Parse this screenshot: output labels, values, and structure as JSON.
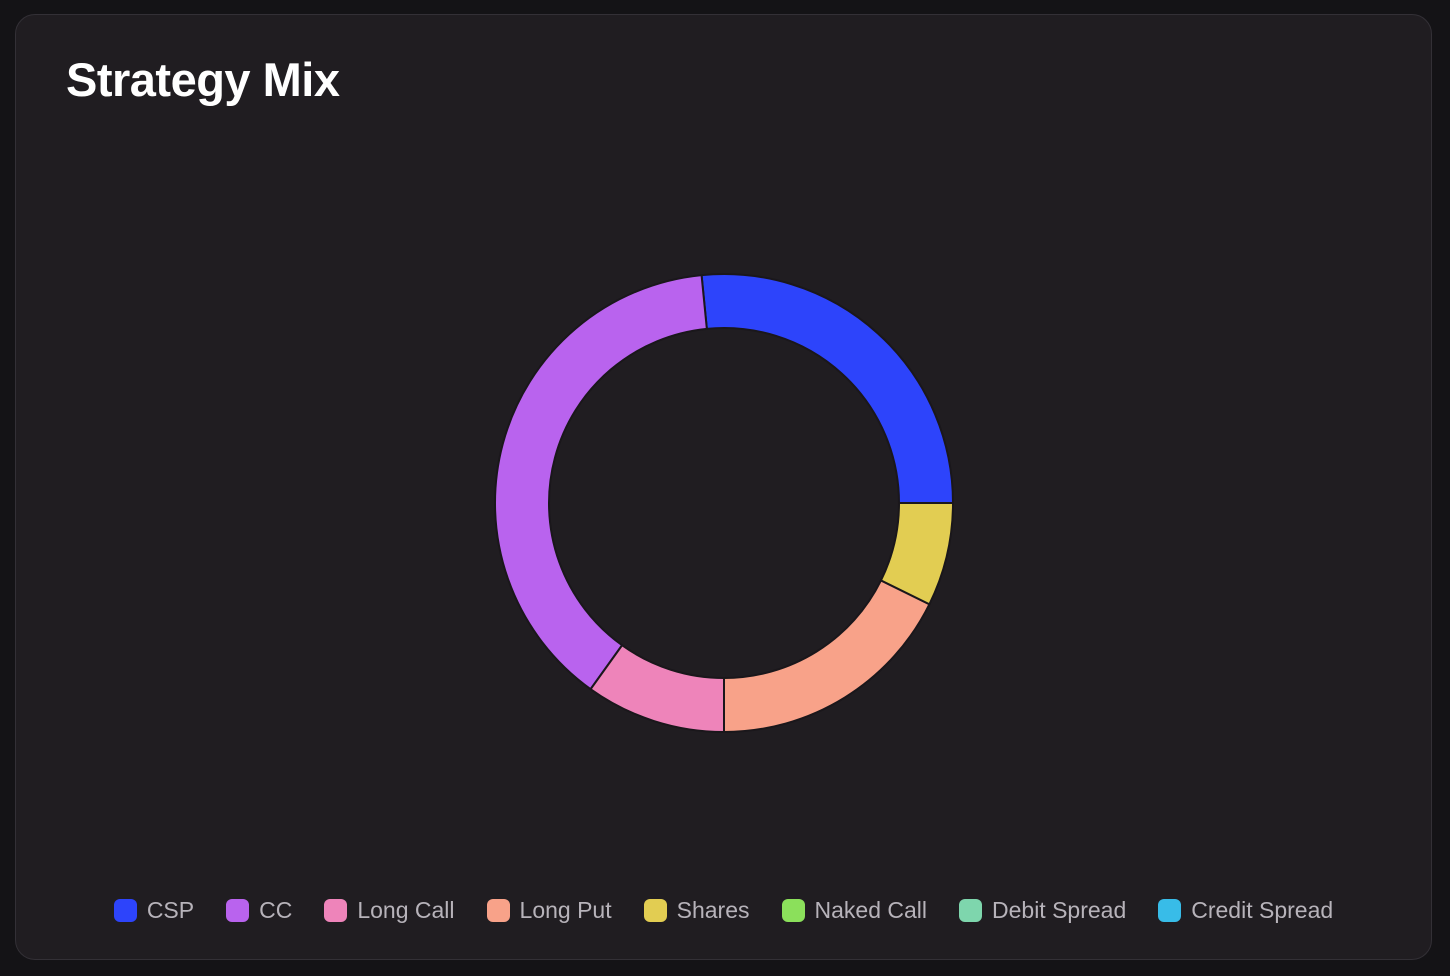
{
  "card": {
    "title": "Strategy Mix"
  },
  "chart_data": {
    "type": "pie",
    "variant": "donut",
    "title": "Strategy Mix",
    "categories": [
      "CSP",
      "CC",
      "Long Call",
      "Long Put",
      "Shares",
      "Naked Call",
      "Debit Spread",
      "Credit Spread"
    ],
    "values": [
      25.5,
      37.0,
      9.5,
      17.0,
      7.0,
      0,
      0,
      0
    ],
    "unit": "%",
    "colors": [
      "#2d44fb",
      "#b963ee",
      "#ee84ba",
      "#f8a289",
      "#e2cd52",
      "#8be05b",
      "#7ed6ad",
      "#38bce8"
    ],
    "start": "3 o'clock",
    "direction": "counter-clockwise",
    "legend_position": "bottom"
  },
  "legend": {
    "items": [
      {
        "label": "CSP",
        "color": "#2d44fb"
      },
      {
        "label": "CC",
        "color": "#b963ee"
      },
      {
        "label": "Long Call",
        "color": "#ee84ba"
      },
      {
        "label": "Long Put",
        "color": "#f8a289"
      },
      {
        "label": "Shares",
        "color": "#e2cd52"
      },
      {
        "label": "Naked Call",
        "color": "#8be05b"
      },
      {
        "label": "Debit Spread",
        "color": "#7ed6ad"
      },
      {
        "label": "Credit Spread",
        "color": "#38bce8"
      }
    ]
  }
}
